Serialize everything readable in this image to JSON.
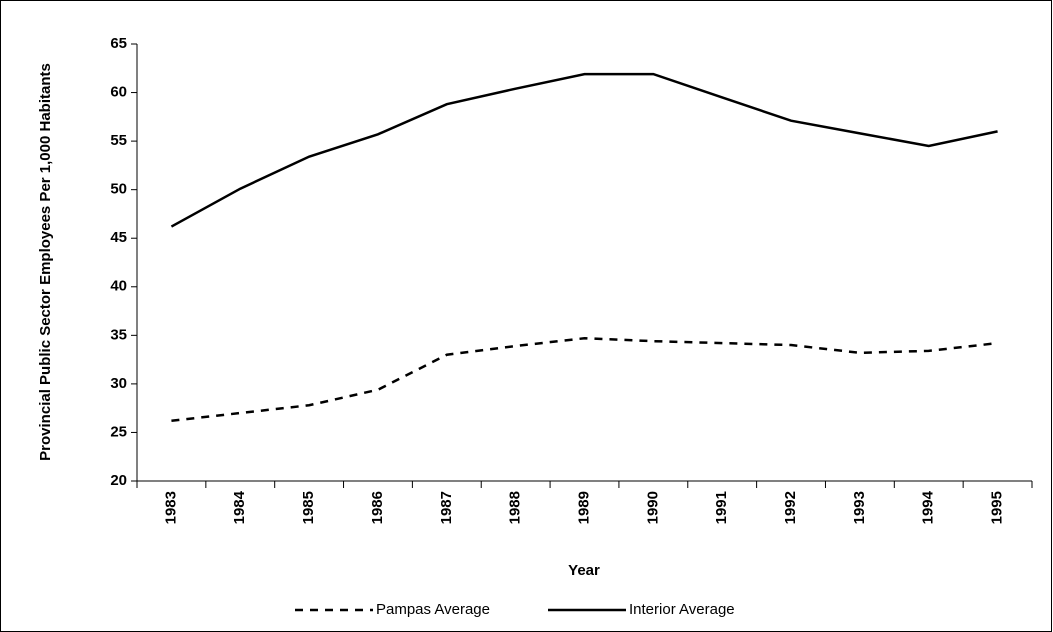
{
  "chart_data": {
    "type": "line",
    "xlabel": "Year",
    "ylabel": "Provincial Public Sector Employees Per 1,000 Habitants",
    "categories": [
      "1983",
      "1984",
      "1985",
      "1986",
      "1987",
      "1988",
      "1989",
      "1990",
      "1991",
      "1992",
      "1993",
      "1994",
      "1995"
    ],
    "series": [
      {
        "name": "Pampas Average",
        "color": "#000000",
        "linestyle": "dashed",
        "values": [
          26.2,
          27.0,
          27.8,
          29.4,
          33.0,
          33.9,
          34.7,
          34.4,
          34.2,
          34.0,
          33.2,
          33.4,
          34.2
        ]
      },
      {
        "name": "Interior Average",
        "color": "#000000",
        "linestyle": "solid",
        "values": [
          46.2,
          50.1,
          53.4,
          55.7,
          58.8,
          60.4,
          61.9,
          61.9,
          59.5,
          57.1,
          55.8,
          54.5,
          56.0
        ]
      }
    ],
    "ylim": [
      20,
      65
    ],
    "yticks": [
      20,
      25,
      30,
      35,
      40,
      45,
      50,
      55,
      60,
      65
    ],
    "legend": "bottom"
  }
}
